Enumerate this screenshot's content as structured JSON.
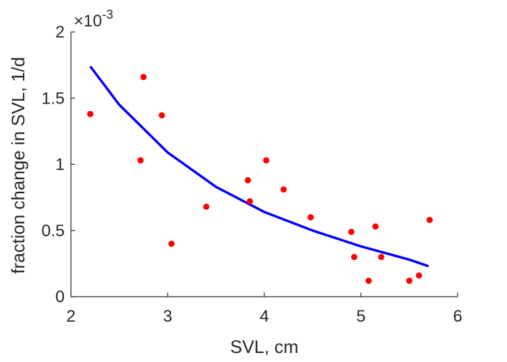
{
  "chart_data": {
    "type": "scatter",
    "title": "",
    "xlabel": "SVL, cm",
    "ylabel": "fraction change in SVL, 1/d",
    "y_multiplier_label": "×10",
    "y_multiplier_exponent": "-3",
    "xlim": [
      2,
      6
    ],
    "ylim": [
      0,
      2
    ],
    "x_ticks": [
      "2",
      "3",
      "4",
      "5",
      "6"
    ],
    "y_ticks": [
      "0",
      "0.5",
      "1",
      "1.5",
      "2"
    ],
    "grid": false,
    "legend": "none",
    "series": [
      {
        "type": "scatter",
        "color": "#ff0000",
        "points": [
          [
            2.2,
            1.38
          ],
          [
            2.72,
            1.03
          ],
          [
            2.75,
            1.66
          ],
          [
            2.94,
            1.37
          ],
          [
            3.04,
            0.4
          ],
          [
            3.4,
            0.68
          ],
          [
            3.83,
            0.88
          ],
          [
            3.85,
            0.72
          ],
          [
            4.02,
            1.03
          ],
          [
            4.2,
            0.81
          ],
          [
            4.48,
            0.6
          ],
          [
            4.9,
            0.49
          ],
          [
            4.93,
            0.3
          ],
          [
            5.08,
            0.12
          ],
          [
            5.15,
            0.53
          ],
          [
            5.21,
            0.3
          ],
          [
            5.5,
            0.12
          ],
          [
            5.6,
            0.16
          ],
          [
            5.71,
            0.58
          ]
        ]
      },
      {
        "type": "line",
        "color": "#0000ff",
        "x": [
          2.2,
          2.5,
          3.0,
          3.5,
          4.0,
          4.5,
          5.0,
          5.5,
          5.7
        ],
        "y": [
          1.74,
          1.45,
          1.09,
          0.83,
          0.64,
          0.5,
          0.38,
          0.28,
          0.23
        ]
      }
    ]
  }
}
